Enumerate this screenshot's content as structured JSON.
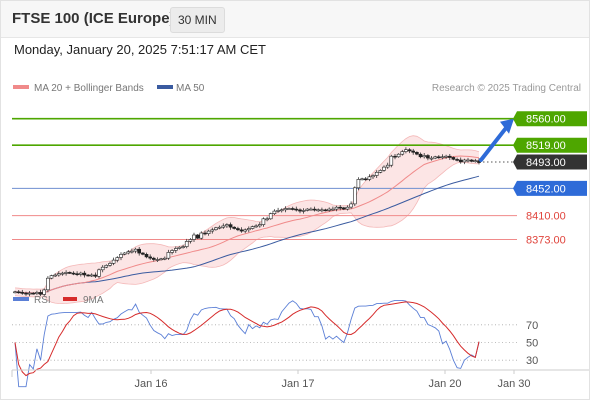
{
  "header": {
    "title": "FTSE 100 (ICE Europe)",
    "timeframe": "30 MIN",
    "datetime": "Monday, January 20, 2025 7:51:17 AM CET"
  },
  "legend": {
    "ma20": "MA 20 + Bollinger Bands",
    "ma50": "MA 50",
    "credit": "Research © 2025 Trading Central"
  },
  "rsi_legend": {
    "rsi": "RSI",
    "ma": "9MA"
  },
  "colors": {
    "green": "#4ea600",
    "blue": "#2e6bd8",
    "red": "#e86b6b",
    "dark": "#333333",
    "bb_fill": "#fbdcdc",
    "ma50": "#3a5ba0",
    "rsi": "#5b7fd6",
    "rsi_ma": "#d62b2b"
  },
  "chart_data": {
    "type": "candlestick",
    "x_tick_labels": [
      "Jan 16",
      "Jan 17",
      "Jan 20",
      "Jan 30"
    ],
    "ylim": [
      8270,
      8575
    ],
    "levels": [
      {
        "value": 8560.0,
        "label": "8560.00",
        "kind": "resistance"
      },
      {
        "value": 8519.0,
        "label": "8519.00",
        "kind": "resistance"
      },
      {
        "value": 8493.0,
        "label": "8493.00",
        "kind": "last"
      },
      {
        "value": 8452.0,
        "label": "8452.00",
        "kind": "pivot"
      },
      {
        "value": 8410.0,
        "label": "8410.00",
        "kind": "support"
      },
      {
        "value": 8373.0,
        "label": "8373.00",
        "kind": "support"
      }
    ],
    "close": [
      8292,
      8291,
      8290,
      8289,
      8290,
      8289,
      8291,
      8288,
      8295,
      8313,
      8317,
      8318,
      8320,
      8321,
      8322,
      8321,
      8320,
      8319,
      8321,
      8318,
      8317,
      8318,
      8316,
      8326,
      8330,
      8333,
      8336,
      8341,
      8345,
      8350,
      8352,
      8354,
      8355,
      8358,
      8352,
      8350,
      8346,
      8344,
      8342,
      8342,
      8343,
      8344,
      8353,
      8356,
      8359,
      8361,
      8362,
      8370,
      8373,
      8380,
      8375,
      8383,
      8382,
      8386,
      8388,
      8391,
      8392,
      8394,
      8396,
      8392,
      8390,
      8388,
      8386,
      8388,
      8390,
      8393,
      8394,
      8396,
      8405,
      8405,
      8413,
      8417,
      8418,
      8419,
      8421,
      8421,
      8420,
      8419,
      8417,
      8418,
      8420,
      8420,
      8419,
      8419,
      8419,
      8418,
      8420,
      8420,
      8423,
      8422,
      8420,
      8423,
      8428,
      8453,
      8466,
      8467,
      8466,
      8470,
      8472,
      8477,
      8480,
      8485,
      8488,
      8502,
      8501,
      8505,
      8509,
      8512,
      8510,
      8508,
      8505,
      8501,
      8503,
      8499,
      8499,
      8501,
      8500,
      8501,
      8502,
      8500,
      8497,
      8496,
      8493,
      8496,
      8496,
      8494,
      8495,
      8492
    ],
    "ma20_last": 8499,
    "ma50_last": 8489,
    "projection": {
      "from": 8493,
      "to": 8560
    },
    "rsi": {
      "ylim": [
        20,
        80
      ],
      "levels": [
        70,
        50,
        30
      ],
      "level_labels": [
        "70",
        "50",
        "30"
      ],
      "rsi_last": 50,
      "ma9_last": 51
    }
  }
}
